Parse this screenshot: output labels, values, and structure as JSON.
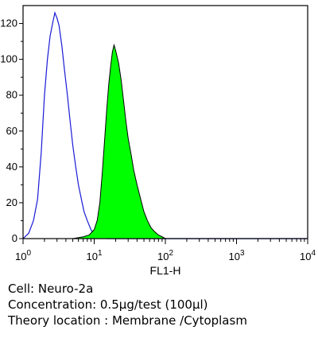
{
  "chart_data": {
    "type": "line",
    "title": "",
    "xlabel": "FL1-H",
    "ylabel": "",
    "xscale": "log",
    "xlim": [
      1,
      10000
    ],
    "ylim": [
      0,
      130
    ],
    "grid": false,
    "x_ticks": [
      {
        "base": "10",
        "exp": "0"
      },
      {
        "base": "10",
        "exp": "1"
      },
      {
        "base": "10",
        "exp": "2"
      },
      {
        "base": "10",
        "exp": "3"
      },
      {
        "base": "10",
        "exp": "4"
      }
    ],
    "y_ticks": [
      "0",
      "20",
      "40",
      "60",
      "80",
      "100",
      "120"
    ],
    "series": [
      {
        "style": "outline",
        "color": "#1a1ad6",
        "x": [
          1,
          1.2,
          1.4,
          1.6,
          1.8,
          2.0,
          2.2,
          2.4,
          2.6,
          2.8,
          3.0,
          3.2,
          3.5,
          3.8,
          4.2,
          4.6,
          5.0,
          5.5,
          6.0,
          6.6,
          7.2,
          8.0,
          9.0,
          10,
          12,
          15,
          20,
          50,
          200,
          1000,
          10000
        ],
        "y": [
          0,
          3,
          10,
          22,
          48,
          80,
          100,
          113,
          120,
          126,
          123,
          119,
          108,
          95,
          80,
          65,
          52,
          40,
          30,
          22,
          15,
          10,
          5,
          2,
          1,
          0,
          0,
          0,
          0,
          0,
          0
        ]
      },
      {
        "style": "filled",
        "color": "#00ff00",
        "x": [
          1,
          5,
          7,
          8.5,
          10,
          11,
          12,
          13,
          14,
          15,
          16,
          17,
          18,
          19,
          20,
          22,
          24,
          26,
          28,
          30,
          33,
          36,
          40,
          45,
          50,
          56,
          63,
          70,
          80,
          90,
          100,
          200,
          1000,
          10000
        ],
        "y": [
          0,
          0,
          1,
          2,
          5,
          10,
          20,
          37,
          55,
          72,
          86,
          96,
          104,
          108,
          105,
          98,
          88,
          76,
          65,
          56,
          47,
          38,
          30,
          22,
          15,
          10,
          6,
          4,
          2,
          1,
          0,
          0,
          0,
          0
        ]
      }
    ]
  },
  "caption": {
    "line1": "Cell: Neuro-2a",
    "line2": "Concentration: 0.5μg/test (100μl)",
    "line3": "Theory location : Membrane /Cytoplasm"
  }
}
